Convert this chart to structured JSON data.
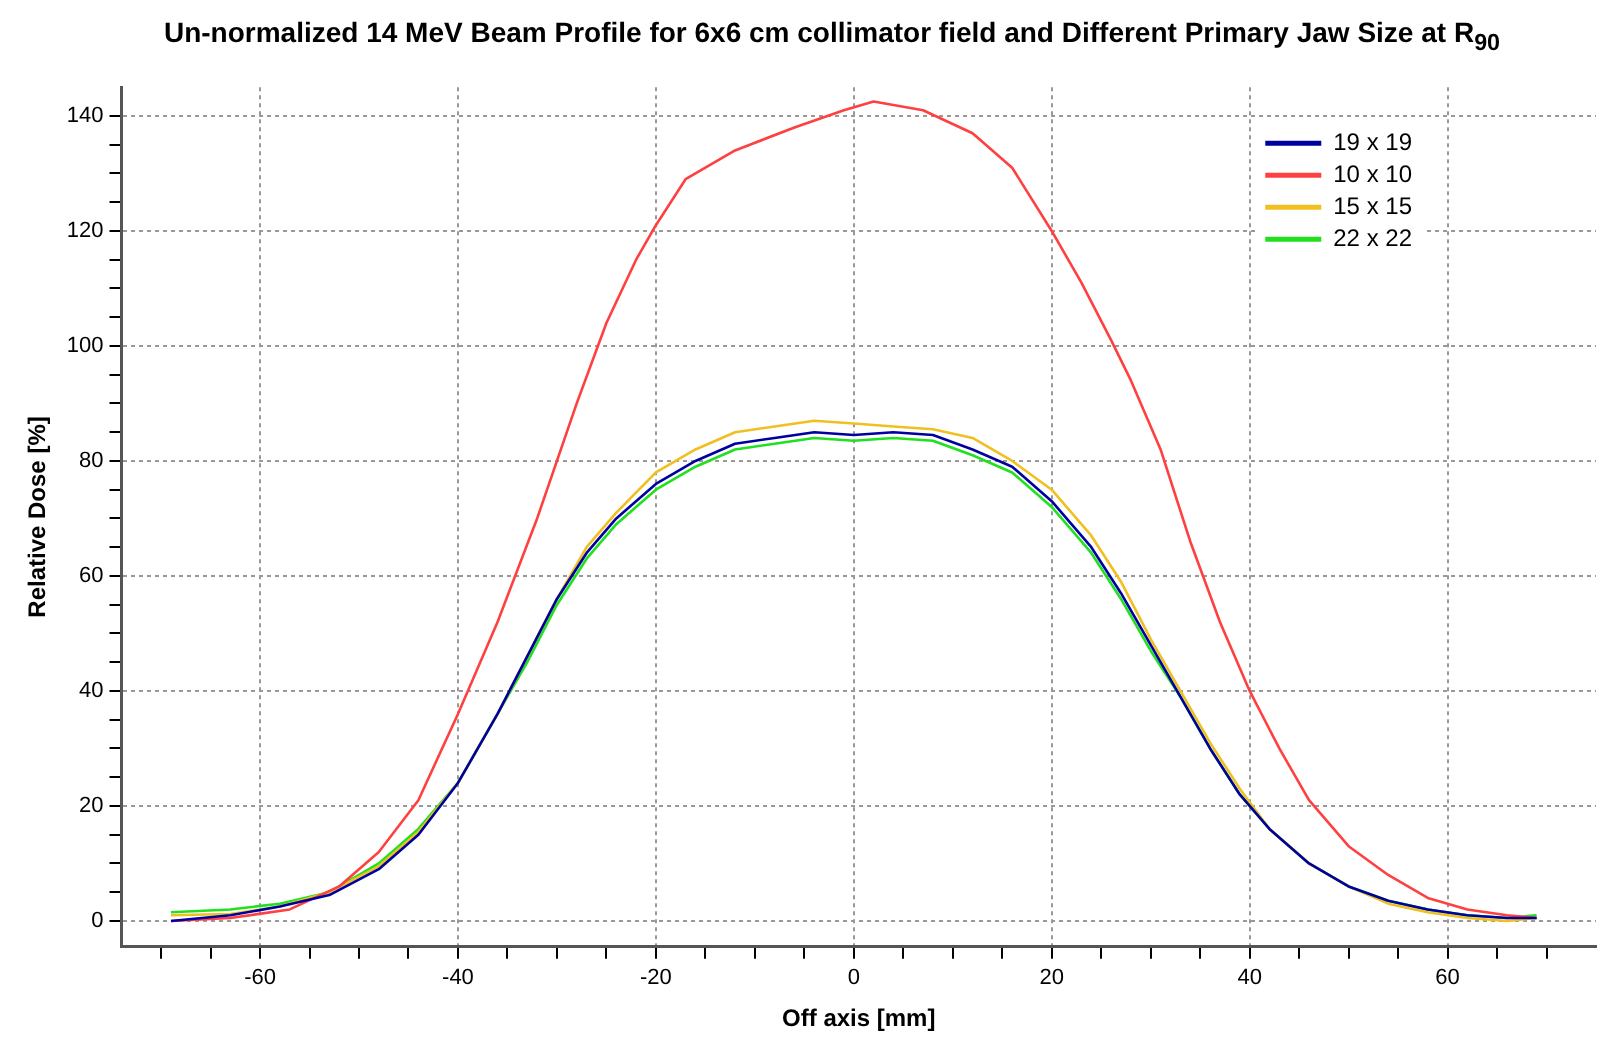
{
  "chart_data": {
    "type": "line",
    "title": "Un-normalized 14 MeV Beam Profile for 6x6 cm collimator field and Different Primary Jaw Size at R$_{90}$",
    "xlabel": "Off axis [mm]",
    "ylabel": "Relative Dose [%]",
    "xlim": [
      -74,
      75
    ],
    "ylim": [
      -4.5,
      145
    ],
    "xticks": [
      {
        "value": -70,
        "label": null
      },
      {
        "value": -65,
        "label": null
      },
      -60,
      {
        "value": -55,
        "label": null
      },
      {
        "value": -50,
        "label": null
      },
      {
        "value": -45,
        "label": null
      },
      -40,
      {
        "value": -35,
        "label": null
      },
      {
        "value": -30,
        "label": null
      },
      {
        "value": -25,
        "label": null
      },
      -20,
      {
        "value": -15,
        "label": null
      },
      {
        "value": -10,
        "label": null
      },
      {
        "value": -5,
        "label": null
      },
      0,
      {
        "value": 5,
        "label": null
      },
      {
        "value": 10,
        "label": null
      },
      {
        "value": 15,
        "label": null
      },
      20,
      {
        "value": 25,
        "label": null
      },
      {
        "value": 30,
        "label": null
      },
      {
        "value": 35,
        "label": null
      },
      40,
      {
        "value": 45,
        "label": null
      },
      {
        "value": 50,
        "label": null
      },
      {
        "value": 55,
        "label": null
      },
      60,
      {
        "value": 65,
        "label": null
      },
      {
        "value": 70,
        "label": null
      }
    ],
    "yticks": [
      0,
      {
        "value": 5,
        "label": null
      },
      {
        "value": 10,
        "label": null
      },
      {
        "value": 15,
        "label": null
      },
      20,
      {
        "value": 25,
        "label": null
      },
      {
        "value": 30,
        "label": null
      },
      {
        "value": 35,
        "label": null
      },
      40,
      {
        "value": 45,
        "label": null
      },
      {
        "value": 50,
        "label": null
      },
      {
        "value": 55,
        "label": null
      },
      60,
      {
        "value": 65,
        "label": null
      },
      {
        "value": 70,
        "label": null
      },
      {
        "value": 75,
        "label": null
      },
      80,
      {
        "value": 85,
        "label": null
      },
      {
        "value": 90,
        "label": null
      },
      {
        "value": 95,
        "label": null
      },
      100,
      {
        "value": 105,
        "label": null
      },
      {
        "value": 110,
        "label": null
      },
      {
        "value": 115,
        "label": null
      },
      120,
      {
        "value": 125,
        "label": null
      },
      {
        "value": 130,
        "label": null
      },
      {
        "value": 135,
        "label": null
      },
      140
    ],
    "grid": true,
    "legend": "top right",
    "marker": "none",
    "line_style": "solid",
    "series": [
      {
        "name": "19 x 19",
        "color": "#0000a0",
        "x": [
          -69,
          -63,
          -58,
          -53,
          -48,
          -44,
          -40,
          -36,
          -33,
          -30,
          -27,
          -24,
          -20,
          -16,
          -12,
          -8,
          -4,
          0,
          4,
          8,
          12,
          16,
          20,
          24,
          27,
          30,
          33,
          36,
          39,
          42,
          46,
          50,
          54,
          58,
          62,
          66,
          69
        ],
        "values": [
          0,
          1,
          2.5,
          4.5,
          9,
          15,
          24,
          36,
          46,
          56,
          64,
          70,
          76,
          80,
          83,
          84,
          85,
          84.5,
          85,
          84.5,
          82,
          79,
          73,
          65,
          57,
          48,
          39,
          30,
          22,
          16,
          10,
          6,
          3.5,
          2,
          1,
          0.5,
          0.5
        ]
      },
      {
        "name": "10 x 10",
        "color": "#ff4040",
        "x": [
          -69,
          -63,
          -57,
          -52,
          -48,
          -44,
          -40,
          -36,
          -32,
          -28,
          -25,
          -22,
          -20,
          -17,
          -12,
          -6,
          -1,
          2,
          7,
          12,
          16,
          20,
          23,
          26,
          28,
          31,
          34,
          37,
          40,
          43,
          46,
          50,
          54,
          58,
          62,
          66,
          69
        ],
        "values": [
          0,
          0.5,
          2,
          6,
          12,
          21,
          36,
          52,
          70,
          90,
          104,
          115,
          121,
          129,
          134,
          138,
          141,
          142.5,
          141,
          137,
          131,
          120,
          111,
          101,
          94,
          82,
          66,
          52,
          40,
          30,
          21,
          13,
          8,
          4,
          2,
          1,
          0.5
        ]
      },
      {
        "name": "15 x 15",
        "color": "#f0c020",
        "x": [
          -69,
          -63,
          -58,
          -53,
          -48,
          -44,
          -40,
          -36,
          -33,
          -30,
          -27,
          -24,
          -20,
          -16,
          -12,
          -8,
          -4,
          0,
          4,
          8,
          12,
          16,
          20,
          24,
          27,
          30,
          33,
          36,
          39,
          42,
          46,
          50,
          54,
          58,
          62,
          66,
          69
        ],
        "values": [
          1,
          1.2,
          2.5,
          5,
          9.5,
          15.5,
          24,
          36,
          46,
          56,
          65,
          71,
          78,
          82,
          85,
          86,
          87,
          86.5,
          86,
          85.5,
          84,
          80,
          75,
          67,
          59,
          49,
          40,
          31,
          23,
          16,
          10,
          6,
          3,
          1.5,
          0.5,
          0,
          0.5
        ]
      },
      {
        "name": "22 x 22",
        "color": "#20e020",
        "x": [
          -69,
          -63,
          -58,
          -53,
          -48,
          -44,
          -40,
          -36,
          -33,
          -30,
          -27,
          -24,
          -20,
          -16,
          -12,
          -8,
          -4,
          0,
          4,
          8,
          12,
          16,
          20,
          24,
          27,
          30,
          33,
          36,
          39,
          42,
          46,
          50,
          54,
          58,
          62,
          66,
          69
        ],
        "values": [
          1.5,
          2,
          3,
          5,
          10,
          16,
          24,
          36,
          45,
          55,
          63,
          69,
          75,
          79,
          82,
          83,
          84,
          83.5,
          84,
          83.5,
          81,
          78,
          72,
          64,
          56,
          47,
          39,
          30,
          22,
          16,
          10,
          6,
          3.5,
          2,
          1,
          0.5,
          1
        ]
      }
    ]
  }
}
